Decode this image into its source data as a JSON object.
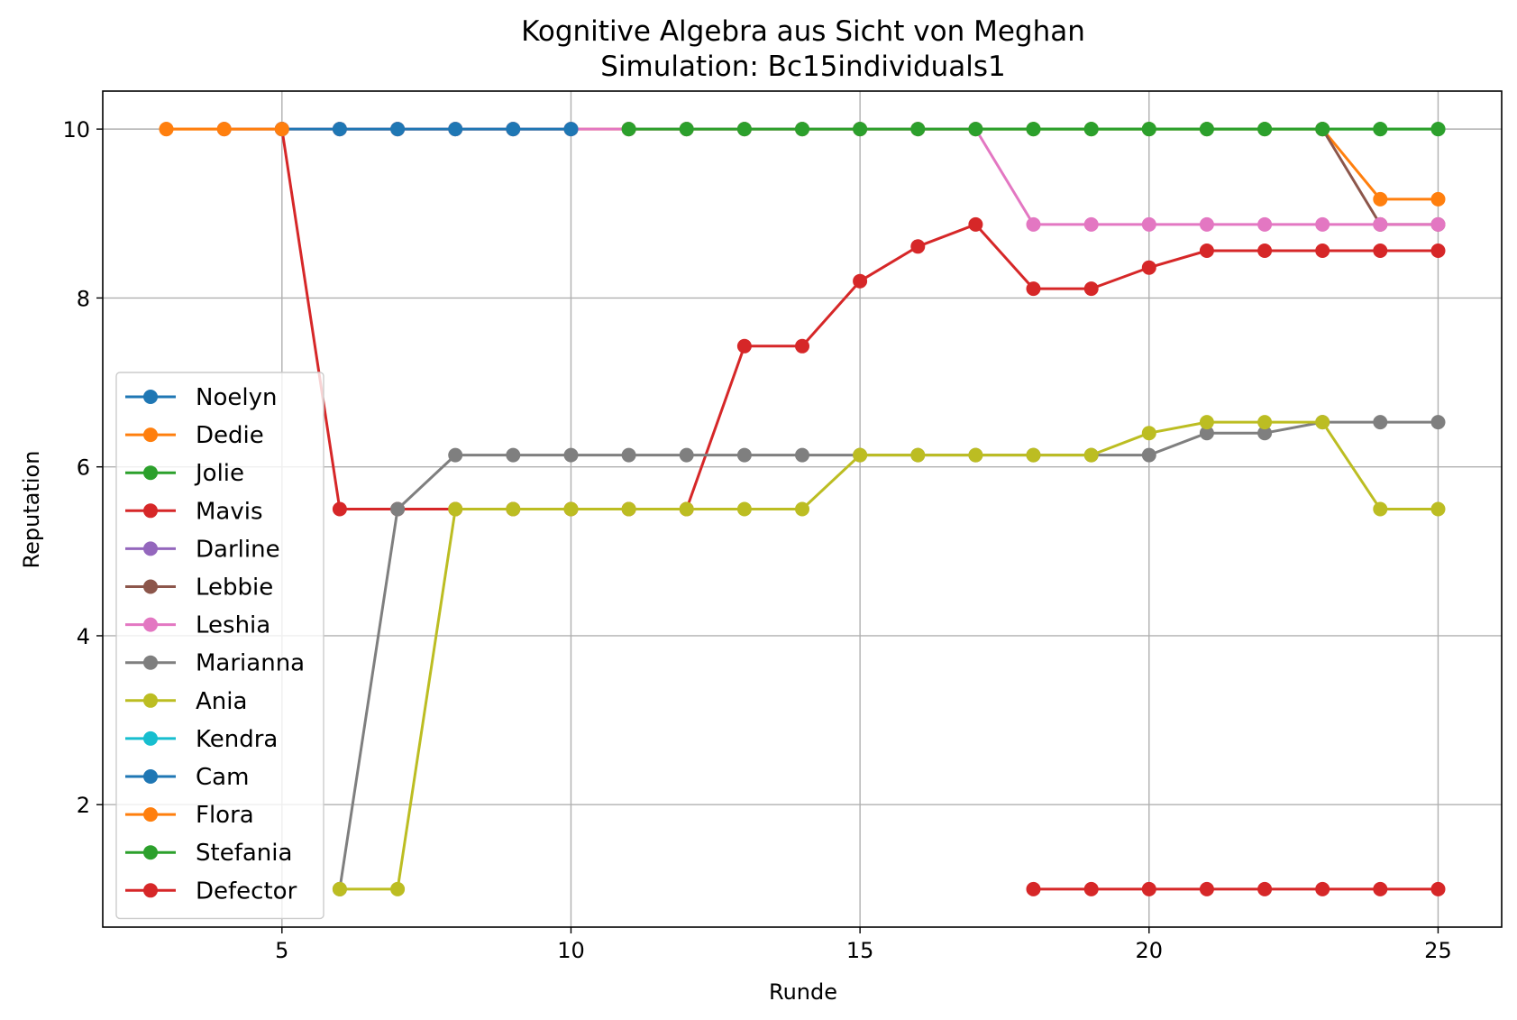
{
  "chart_data": {
    "type": "line",
    "title": "Kognitive Algebra aus Sicht von Meghan",
    "subtitle": "Simulation: Bc15individuals1",
    "xlabel": "Runde",
    "ylabel": "Reputation",
    "xlim": [
      1.9,
      26.1
    ],
    "ylim": [
      0.55,
      10.45
    ],
    "xticks": [
      5,
      10,
      15,
      20,
      25
    ],
    "yticks": [
      2,
      4,
      6,
      8,
      10
    ],
    "grid": true,
    "legend_position": "lower-left",
    "series": [
      {
        "name": "Noelyn",
        "color": "#1f77b4",
        "x": [
          6,
          7,
          8,
          9,
          10
        ],
        "y": [
          10,
          10,
          10,
          10,
          10
        ]
      },
      {
        "name": "Dedie",
        "color": "#ff7f0e",
        "x": [
          3,
          4,
          5,
          6,
          7,
          8,
          9,
          10,
          11,
          12,
          13,
          14,
          15,
          16,
          17,
          18,
          19,
          20,
          21,
          22,
          23,
          24,
          25
        ],
        "y": [
          10,
          10,
          10,
          10,
          10,
          10,
          10,
          10,
          10,
          10,
          10,
          10,
          10,
          10,
          10,
          10,
          10,
          10,
          10,
          10,
          10,
          9.17,
          9.17
        ]
      },
      {
        "name": "Jolie",
        "color": "#2ca02c",
        "x": [
          11,
          12,
          13,
          14,
          15,
          16,
          17,
          18,
          19,
          20,
          21,
          22,
          23,
          24,
          25
        ],
        "y": [
          10,
          10,
          10,
          10,
          10,
          10,
          10,
          10,
          10,
          10,
          10,
          10,
          10,
          10,
          10
        ]
      },
      {
        "name": "Mavis",
        "color": "#d62728",
        "x": [
          5,
          6,
          7,
          8,
          9,
          10,
          11,
          12,
          13,
          14,
          15,
          16,
          17,
          18,
          19,
          20,
          21,
          22,
          23,
          24,
          25
        ],
        "y": [
          10,
          5.5,
          5.5,
          5.5,
          5.5,
          5.5,
          5.5,
          5.5,
          7.43,
          7.43,
          8.2,
          8.61,
          8.87,
          8.11,
          8.11,
          8.36,
          8.56,
          8.56,
          8.56,
          8.56,
          8.56
        ]
      },
      {
        "name": "Darline",
        "color": "#9467bd",
        "x": [
          4,
          5
        ],
        "y": [
          10,
          10
        ]
      },
      {
        "name": "Lebbie",
        "color": "#8c564b",
        "x": [
          23,
          24,
          25
        ],
        "y": [
          10,
          8.87,
          8.87
        ]
      },
      {
        "name": "Leshia",
        "color": "#e377c2",
        "x": [
          5,
          6,
          7,
          8,
          9,
          10,
          11,
          12,
          13,
          14,
          15,
          16,
          17,
          18,
          19,
          20,
          21,
          22,
          23,
          24,
          25
        ],
        "y": [
          10,
          10,
          10,
          10,
          10,
          10,
          10,
          10,
          10,
          10,
          10,
          10,
          10,
          8.87,
          8.87,
          8.87,
          8.87,
          8.87,
          8.87,
          8.87,
          8.87
        ]
      },
      {
        "name": "Marianna",
        "color": "#7f7f7f",
        "x": [
          6,
          7,
          8,
          9,
          10,
          11,
          12,
          13,
          14,
          15,
          16,
          17,
          18,
          19,
          20,
          21,
          22,
          23,
          24,
          25
        ],
        "y": [
          1,
          5.5,
          6.14,
          6.14,
          6.14,
          6.14,
          6.14,
          6.14,
          6.14,
          6.14,
          6.14,
          6.14,
          6.14,
          6.14,
          6.14,
          6.4,
          6.4,
          6.53,
          6.53,
          6.53
        ]
      },
      {
        "name": "Ania",
        "color": "#bcbd22",
        "x": [
          6,
          7,
          8,
          9,
          10,
          11,
          12,
          13,
          14,
          15,
          16,
          17,
          18,
          19,
          20,
          21,
          22,
          23,
          24,
          25
        ],
        "y": [
          1,
          1,
          5.5,
          5.5,
          5.5,
          5.5,
          5.5,
          5.5,
          5.5,
          6.14,
          6.14,
          6.14,
          6.14,
          6.14,
          6.4,
          6.53,
          6.53,
          6.53,
          5.5,
          5.5
        ]
      },
      {
        "name": "Kendra",
        "color": "#17becf",
        "x": [],
        "y": []
      },
      {
        "name": "Cam",
        "color": "#1f77b4",
        "x": [
          5,
          6,
          7,
          8,
          9,
          10
        ],
        "y": [
          10,
          10,
          10,
          10,
          10,
          10
        ]
      },
      {
        "name": "Flora",
        "color": "#ff7f0e",
        "x": [
          3,
          4,
          5
        ],
        "y": [
          10,
          10,
          10
        ]
      },
      {
        "name": "Stefania",
        "color": "#2ca02c",
        "x": [
          11,
          12,
          13,
          14,
          15,
          16,
          17,
          18,
          19,
          20,
          21,
          22,
          23,
          24,
          25
        ],
        "y": [
          10,
          10,
          10,
          10,
          10,
          10,
          10,
          10,
          10,
          10,
          10,
          10,
          10,
          10,
          10
        ]
      },
      {
        "name": "Defector",
        "color": "#d62728",
        "x": [
          18,
          19,
          20,
          21,
          22,
          23,
          24,
          25
        ],
        "y": [
          1,
          1,
          1,
          1,
          1,
          1,
          1,
          1
        ]
      }
    ]
  }
}
